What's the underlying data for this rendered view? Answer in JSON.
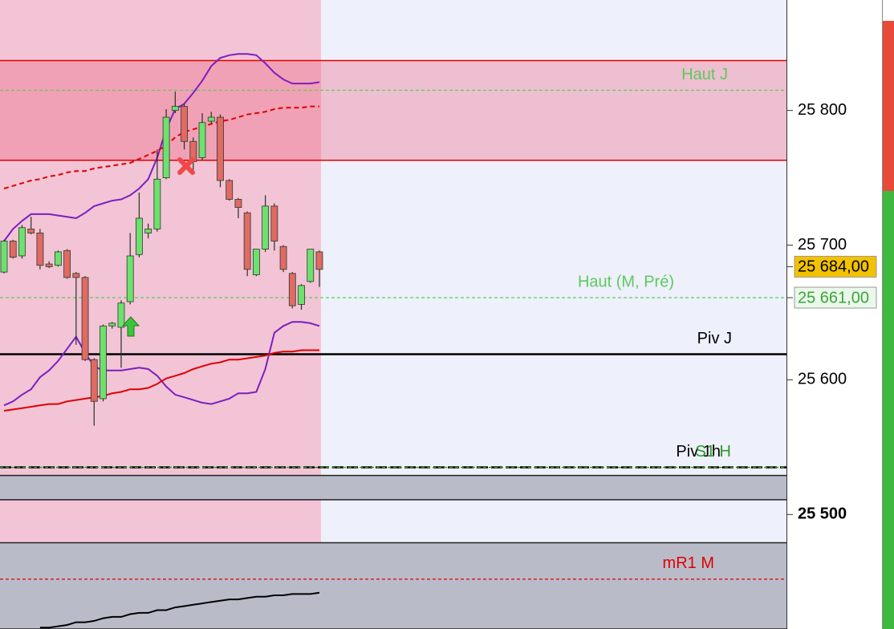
{
  "chart_data": {
    "type": "candlestick",
    "ylim": [
      25415,
      25882
    ],
    "yticks": [
      {
        "value": 25800,
        "label": "25 800"
      },
      {
        "value": 25700,
        "label": "25 700"
      },
      {
        "value": 25600,
        "label": "25 600"
      },
      {
        "value": 25500,
        "label": "25 500",
        "bold": true
      }
    ],
    "up_color": "#6ee06e",
    "down_color": "#e06a64",
    "open": [
      25680,
      25703,
      25692,
      25712,
      25709,
      25686,
      25685,
      25696,
      25679,
      25676,
      25615,
      25586,
      25640,
      25639,
      25658,
      25693,
      25709,
      25712,
      25750,
      25800,
      25803,
      25777,
      25765,
      25792,
      25795,
      25748,
      25734,
      25724,
      25678,
      25697,
      25729,
      25699,
      25679,
      25656,
      25673,
      25695
    ],
    "high": [
      25704,
      25704,
      25715,
      25721,
      25712,
      25688,
      25696,
      25697,
      25680,
      25677,
      25616,
      25641,
      25643,
      25659,
      25709,
      25739,
      25716,
      25771,
      25801,
      25814,
      25805,
      25780,
      25798,
      25799,
      25797,
      25749,
      25735,
      25725,
      25697,
      25737,
      25731,
      25700,
      25680,
      25671,
      25697,
      25696
    ],
    "low": [
      25679,
      25690,
      25690,
      25708,
      25682,
      25683,
      25684,
      25675,
      25626,
      25614,
      25566,
      25584,
      25638,
      25609,
      25656,
      25691,
      25705,
      25710,
      25749,
      25798,
      25771,
      25754,
      25763,
      25790,
      25743,
      25733,
      25720,
      25677,
      25677,
      25695,
      25696,
      25680,
      25653,
      25652,
      25672,
      25669
    ],
    "close": [
      25703,
      25691,
      25713,
      25709,
      25685,
      25684,
      25695,
      25676,
      25676,
      25615,
      25584,
      25640,
      25642,
      25657,
      25692,
      25720,
      25712,
      25749,
      25795,
      25803,
      25777,
      25762,
      25791,
      25795,
      25748,
      25734,
      25728,
      25682,
      25697,
      25729,
      25703,
      25682,
      25655,
      25670,
      25697,
      25682
    ],
    "lines": [
      {
        "color": "#7b1fc0",
        "style": "solid",
        "values": [
          25703,
          25712,
          25718,
          25723,
          25723,
          25723,
          25722,
          25721,
          25720,
          25724,
          25729,
          25731,
          25733,
          25734,
          25737,
          25742,
          25749,
          25765,
          25786,
          25801,
          25805,
          25813,
          25822,
          25833,
          25839,
          25841,
          25842,
          25842,
          25841,
          25835,
          25828,
          25823,
          25820,
          25820,
          25820,
          25821
        ]
      },
      {
        "color": "#7b1fc0",
        "style": "solid",
        "values": [
          25581,
          25584,
          25589,
          25593,
          25602,
          25607,
          25614,
          25623,
          25632,
          25620,
          25610,
          25607,
          25607,
          25607,
          25608,
          25609,
          25608,
          25603,
          25595,
          25589,
          25587,
          25585,
          25583,
          25582,
          25584,
          25586,
          25590,
          25590,
          25591,
          25608,
          25635,
          25640,
          25643,
          25643,
          25642,
          25640
        ]
      },
      {
        "color": "#e00000",
        "style": "dashed",
        "values": [
          25742,
          25744,
          25746,
          25748,
          25749,
          25751,
          25752,
          25754,
          25755,
          25755,
          25757,
          25758,
          25759,
          25760,
          25761,
          25764,
          25767,
          25770,
          25774,
          25780,
          25784,
          25786,
          25788,
          25790,
          25792,
          25793,
          25795,
          25797,
          25798,
          25799,
          25801,
          25802,
          25802,
          25802,
          25803,
          25803
        ]
      },
      {
        "color": "#e00000",
        "style": "solid",
        "values": [
          25577,
          25578,
          25579,
          25580,
          25581,
          25582,
          25582,
          25584,
          25585,
          25586,
          25587,
          25588,
          25590,
          25591,
          25593,
          25593,
          25594,
          25597,
          25601,
          25603,
          25605,
          25608,
          25610,
          25612,
          25613,
          25615,
          25615,
          25616,
          25617,
          25618,
          25620,
          25621,
          25621,
          25622,
          25622,
          25622
        ]
      },
      {
        "color": "#000000",
        "style": "solid",
        "values": [
          null,
          null,
          null,
          null,
          25416,
          25416,
          25417,
          25418,
          25420,
          25420,
          25421,
          25423,
          25424,
          25424,
          25426,
          25427,
          25427,
          25429,
          25429,
          25431,
          25432,
          25433,
          25434,
          25435,
          25436,
          25437,
          25437,
          25438,
          25439,
          25439,
          25440,
          25440,
          25441,
          25441,
          25441,
          25442
        ]
      }
    ],
    "zones": [
      {
        "from": 25837,
        "to": 25763,
        "color": "rgba(240,80,110,0.3)",
        "edge": "#e00000"
      },
      {
        "from": 25529,
        "to": 25511,
        "color": "#b9bcc8",
        "edge": "#222222"
      },
      {
        "from": 25479,
        "to": 25415,
        "color": "#b9bcc8",
        "edge": "#222222"
      }
    ],
    "levels": [
      {
        "label": "Haut J",
        "value": 25815,
        "color": "#5ec95e",
        "style": "dashed"
      },
      {
        "label": "Haut (M, Pré)",
        "value": 25661,
        "color": "#5ec95e",
        "style": "dashed"
      },
      {
        "label": "Piv J",
        "value": 25619,
        "color": "#000000",
        "style": "solid"
      },
      {
        "label": "Piv 1h",
        "value": 25535,
        "color": "#000000",
        "style": "dashed"
      },
      {
        "label": "S1 H",
        "value": 25535,
        "color": "#2a9a2a",
        "style": "dashed"
      },
      {
        "label": "mR1 M",
        "value": 25452,
        "color": "#e00000",
        "style": "dashed"
      }
    ],
    "price_tags": [
      {
        "value": 25684,
        "label": "25 684,00",
        "color": "#f2c200"
      },
      {
        "value": 25661,
        "label": "25 661,00",
        "color": "#eaf8ea"
      }
    ]
  }
}
